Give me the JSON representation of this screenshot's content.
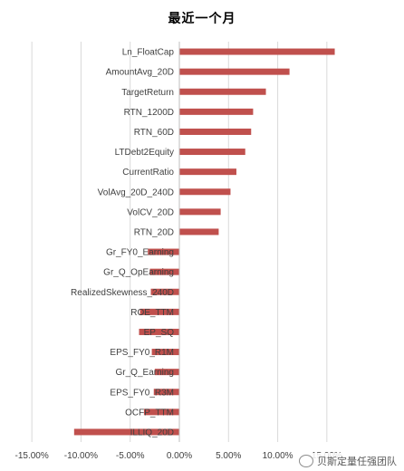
{
  "chart_data": {
    "type": "bar",
    "orientation": "horizontal",
    "title": "最近一个月",
    "categories": [
      "Ln_FloatCap",
      "AmountAvg_20D",
      "TargetReturn",
      "RTN_1200D",
      "RTN_60D",
      "LTDebt2Equity",
      "CurrentRatio",
      "VolAvg_20D_240D",
      "VolCV_20D",
      "RTN_20D",
      "Gr_FY0_Earning",
      "Gr_Q_OpEarning",
      "RealizedSkewness_240D",
      "ROE_TTM",
      "EP_SQ",
      "EPS_FY0_R1M",
      "Gr_Q_Earning",
      "EPS_FY0_R3M",
      "OCFP_TTM",
      "ILLIQ_20D"
    ],
    "values": [
      0.158,
      0.112,
      0.088,
      0.075,
      0.073,
      0.067,
      0.058,
      0.052,
      0.042,
      0.04,
      -0.032,
      -0.03,
      -0.029,
      -0.04,
      -0.041,
      -0.028,
      -0.025,
      -0.026,
      -0.036,
      -0.107
    ],
    "xlim": [
      -0.175,
      0.175
    ],
    "xticks": [
      -0.15,
      -0.1,
      -0.05,
      0.0,
      0.05,
      0.1,
      0.15
    ],
    "xtick_labels": [
      "-15.00%",
      "-10.00%",
      "-5.00%",
      "0.00%",
      "5.00%",
      "10.00%",
      "15.00%"
    ],
    "grid": "vertical",
    "bar_color": "#c0504d"
  },
  "watermark": "贝斯定量任强团队"
}
